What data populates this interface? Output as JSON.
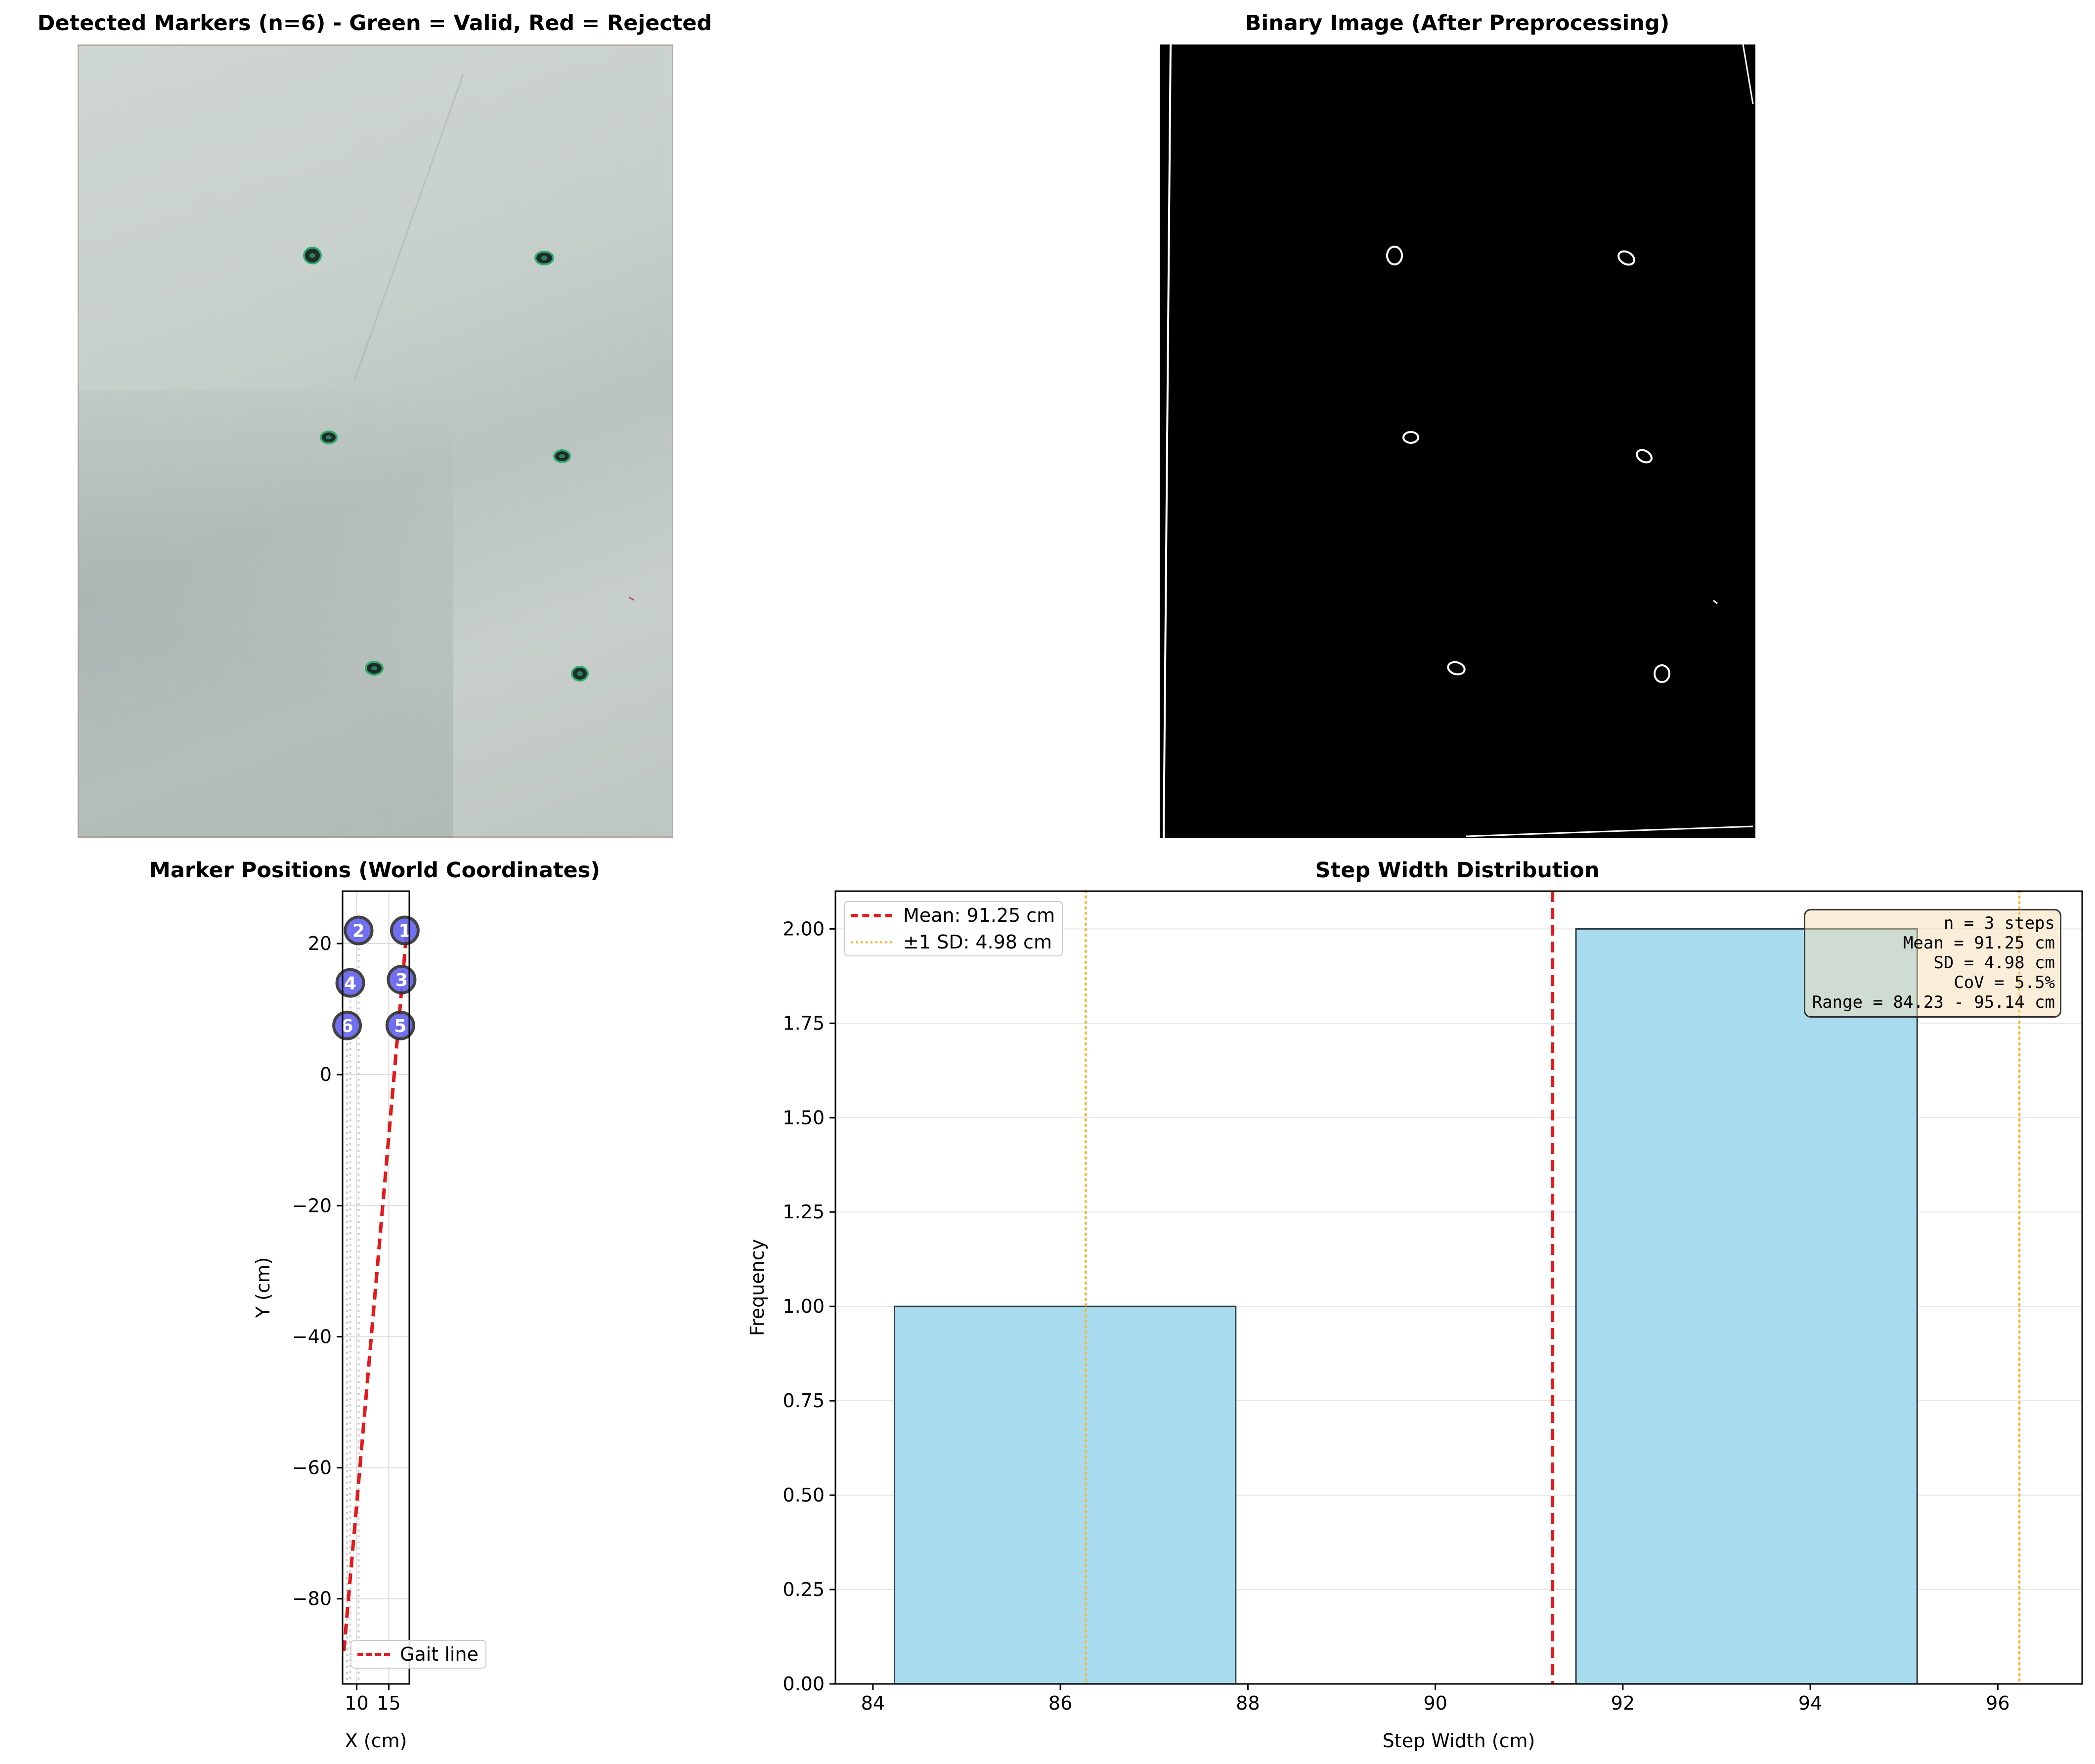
{
  "panels": {
    "detected": {
      "title": "Detected Markers (n=6) - Green = Valid, Red = Rejected"
    },
    "binary": {
      "title": "Binary Image (After Preprocessing)"
    },
    "positions": {
      "title": "Marker Positions (World Coordinates)"
    },
    "histogram": {
      "title": "Step Width Distribution"
    }
  },
  "stats_box": {
    "lines": [
      "n = 3 steps",
      "Mean = 91.25 cm",
      "SD = 4.98 cm",
      "CoV = 5.5%",
      "Range = 84.23 - 95.14 cm"
    ]
  },
  "colors": {
    "marker_fill": "#6464f0",
    "bar_fill": "#a8dbee",
    "mean_line": "#e31a1c",
    "sd_line": "#f5b942",
    "gait_line": "#e31a1c",
    "valid_marker": "#2faa6c"
  },
  "chart_data": [
    {
      "type": "scatter",
      "title": "Marker Positions (World Coordinates)",
      "xlabel": "X (cm)",
      "ylabel": "Y (cm)",
      "xlim": [
        7.8,
        18.2
      ],
      "ylim": [
        -93,
        28
      ],
      "xticks": [
        10,
        15
      ],
      "yticks": [
        20,
        0,
        -20,
        -40,
        -60,
        -80
      ],
      "tick_labels_x": [
        "10",
        "15"
      ],
      "tick_labels_y": [
        "20",
        "0",
        "−20",
        "−40",
        "−60",
        "−80"
      ],
      "grid": true,
      "points": [
        {
          "label": "1",
          "x": 17.5,
          "y": 22.0
        },
        {
          "label": "2",
          "x": 10.3,
          "y": 22.0
        },
        {
          "label": "3",
          "x": 17.0,
          "y": 14.5
        },
        {
          "label": "4",
          "x": 9.0,
          "y": 14.0
        },
        {
          "label": "5",
          "x": 16.8,
          "y": 7.5
        },
        {
          "label": "6",
          "x": 8.5,
          "y": 7.5
        }
      ],
      "series": [
        {
          "name": "Gait line",
          "x": [
            8.0,
            17.8
          ],
          "y": [
            -88.0,
            22.0
          ]
        }
      ],
      "legend": "lower-right"
    },
    {
      "type": "bar",
      "title": "Step Width Distribution",
      "xlabel": "Step Width (cm)",
      "ylabel": "Frequency",
      "xlim": [
        83.6,
        96.9
      ],
      "ylim": [
        0,
        2.1
      ],
      "xticks": [
        84,
        86,
        88,
        90,
        92,
        94,
        96
      ],
      "tick_labels_x": [
        "84",
        "86",
        "88",
        "90",
        "92",
        "94",
        "96"
      ],
      "yticks": [
        0.0,
        0.25,
        0.5,
        0.75,
        1.0,
        1.25,
        1.5,
        1.75,
        2.0
      ],
      "tick_labels_y": [
        "0.00",
        "0.25",
        "0.50",
        "0.75",
        "1.00",
        "1.25",
        "1.50",
        "1.75",
        "2.00"
      ],
      "grid": true,
      "bins": [
        {
          "start": 84.23,
          "end": 87.87,
          "count": 1
        },
        {
          "start": 87.87,
          "end": 91.5,
          "count": 0
        },
        {
          "start": 91.5,
          "end": 95.14,
          "count": 2
        }
      ],
      "mean": 91.25,
      "sd": 4.98,
      "series": [
        {
          "name": "Mean: 91.25 cm",
          "style": "dashed"
        },
        {
          "name": "±1 SD: 4.98 cm",
          "style": "dotted"
        }
      ],
      "legend": "top-left"
    }
  ]
}
